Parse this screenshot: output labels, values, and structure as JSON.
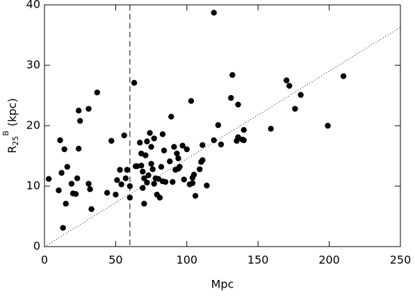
{
  "chart_data": {
    "type": "scatter",
    "xlabel": "Mpc",
    "ylabel": {
      "base": "R",
      "sub": "25",
      "sup": "B",
      "unit": "(kpc)"
    },
    "x": [
      3,
      10,
      11,
      12,
      13,
      14,
      15,
      16,
      19,
      20,
      22,
      23,
      24,
      24,
      25,
      31,
      31,
      32,
      33,
      37,
      44,
      47,
      50,
      51,
      53,
      54,
      56,
      57,
      58,
      60,
      60,
      63,
      64,
      65,
      67,
      68,
      68,
      69,
      69,
      70,
      70,
      71,
      72,
      72,
      73,
      74,
      75,
      75,
      76,
      77,
      77,
      78,
      79,
      80,
      81,
      82,
      83,
      83,
      84,
      85,
      88,
      89,
      90,
      91,
      92,
      93,
      94,
      94,
      95,
      97,
      98,
      100,
      102,
      103,
      104,
      104,
      105,
      106,
      109,
      110,
      111,
      111,
      114,
      119,
      119,
      122,
      124,
      131,
      132,
      135,
      136,
      136,
      139,
      140,
      140,
      159,
      170,
      172,
      176,
      180,
      199,
      210
    ],
    "values": [
      11.2,
      9.3,
      17.6,
      12.2,
      3.1,
      16.1,
      7.1,
      13.2,
      10.4,
      8.8,
      8.7,
      11.3,
      16.2,
      22.5,
      20.8,
      22.8,
      10.4,
      9.5,
      6.2,
      25.5,
      8.9,
      17.5,
      8.6,
      11.0,
      12.7,
      10.3,
      18.4,
      11.3,
      12.7,
      10.0,
      8.1,
      27.1,
      13.3,
      13.3,
      17.2,
      13.4,
      15.4,
      12.4,
      9.7,
      7.1,
      11.3,
      15.1,
      10.6,
      17.4,
      11.8,
      18.8,
      13.7,
      16.5,
      12.8,
      17.9,
      10.4,
      11.3,
      8.6,
      11.2,
      8.1,
      13.2,
      10.8,
      18.6,
      15.9,
      10.7,
      14.1,
      21.5,
      10.7,
      16.5,
      12.7,
      15.4,
      14.6,
      12.9,
      13.2,
      16.7,
      11.1,
      16.1,
      10.3,
      24.1,
      11.4,
      10.5,
      11.9,
      8.4,
      12.8,
      14.0,
      14.3,
      16.8,
      10.1,
      17.6,
      38.7,
      20.1,
      16.9,
      24.6,
      28.4,
      17.5,
      23.5,
      18.1,
      17.7,
      19.3,
      17.6,
      19.5,
      27.5,
      26.6,
      22.8,
      25.1,
      20.0,
      28.2
    ],
    "color": "#000000",
    "xlim": [
      0,
      250
    ],
    "xticks": [
      0,
      50,
      100,
      150,
      200,
      250
    ],
    "ylim": [
      0,
      40
    ],
    "yticks": [
      0,
      10,
      20,
      30,
      40
    ],
    "vertical_line": 60,
    "diagonal_line": {
      "x": [
        0,
        250
      ],
      "y": [
        0,
        36.3
      ]
    }
  }
}
